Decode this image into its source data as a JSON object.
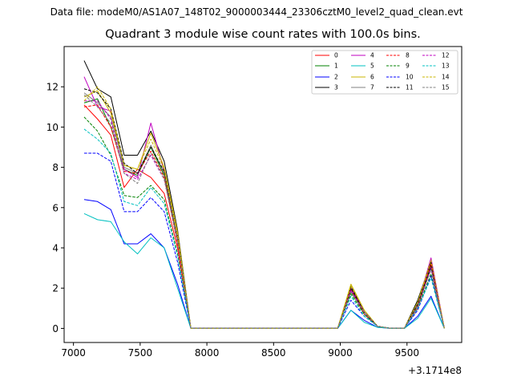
{
  "figure": {
    "suptitle": "Data file: modeM0/AS1A07_148T02_9000003444_23306cztM0_level2_quad_clean.evt"
  },
  "chart_data": {
    "type": "line",
    "title": "Quadrant 3 module wise count rates with 100.0s bins.",
    "xlabel": "",
    "ylabel": "",
    "x_offset_label": "+3.1714e8",
    "xlim": [
      6930,
      9910
    ],
    "ylim": [
      -0.7,
      14.0
    ],
    "xticks": [
      7000,
      7500,
      8000,
      8500,
      9000,
      9500
    ],
    "yticks": [
      0,
      2,
      4,
      6,
      8,
      10,
      12
    ],
    "grid": false,
    "legend": {
      "location": "upper-right",
      "columns": 4
    },
    "x": [
      7080,
      7180,
      7280,
      7380,
      7480,
      7580,
      7680,
      7780,
      7880,
      7980,
      8080,
      8180,
      8280,
      8380,
      8480,
      8580,
      8680,
      8780,
      8880,
      8980,
      9080,
      9180,
      9280,
      9380,
      9480,
      9580,
      9680,
      9780
    ],
    "series": [
      {
        "name": "0",
        "color": "#ff0000",
        "dash": "solid",
        "values": [
          11.1,
          10.4,
          9.6,
          7.0,
          7.9,
          7.5,
          6.7,
          4.0,
          0,
          0,
          0,
          0,
          0,
          0,
          0,
          0,
          0,
          0,
          0,
          0,
          1.9,
          0.7,
          0.1,
          0,
          0,
          1.0,
          3.1,
          0
        ]
      },
      {
        "name": "1",
        "color": "#008000",
        "dash": "solid",
        "values": [
          11.2,
          11.4,
          10.0,
          7.9,
          7.6,
          9.0,
          7.6,
          4.3,
          0,
          0,
          0,
          0,
          0,
          0,
          0,
          0,
          0,
          0,
          0,
          0,
          1.8,
          0.8,
          0.1,
          0,
          0,
          1.1,
          3.0,
          0
        ]
      },
      {
        "name": "2",
        "color": "#0000ff",
        "dash": "solid",
        "values": [
          6.4,
          6.3,
          5.9,
          4.2,
          4.2,
          4.7,
          4.0,
          2.2,
          0,
          0,
          0,
          0,
          0,
          0,
          0,
          0,
          0,
          0,
          0,
          0,
          0.9,
          0.4,
          0.05,
          0,
          0,
          0.6,
          1.6,
          0
        ]
      },
      {
        "name": "3",
        "color": "#000000",
        "dash": "solid",
        "values": [
          13.3,
          11.9,
          11.5,
          8.6,
          8.6,
          9.8,
          8.3,
          4.9,
          0,
          0,
          0,
          0,
          0,
          0,
          0,
          0,
          0,
          0,
          0,
          0,
          2.1,
          0.8,
          0.1,
          0,
          0,
          1.4,
          3.3,
          0
        ]
      },
      {
        "name": "4",
        "color": "#c000c0",
        "dash": "solid",
        "values": [
          12.5,
          11.0,
          10.8,
          7.9,
          7.5,
          10.2,
          7.8,
          4.5,
          0,
          0,
          0,
          0,
          0,
          0,
          0,
          0,
          0,
          0,
          0,
          0,
          2.0,
          0.8,
          0.1,
          0,
          0,
          1.2,
          3.5,
          0
        ]
      },
      {
        "name": "5",
        "color": "#00c0c0",
        "dash": "solid",
        "values": [
          5.7,
          5.4,
          5.3,
          4.3,
          3.7,
          4.5,
          4.0,
          2.0,
          0,
          0,
          0,
          0,
          0,
          0,
          0,
          0,
          0,
          0,
          0,
          0,
          0.9,
          0.3,
          0.05,
          0,
          0,
          0.5,
          1.5,
          0
        ]
      },
      {
        "name": "6",
        "color": "#c8b400",
        "dash": "solid",
        "values": [
          11.5,
          11.8,
          10.7,
          8.1,
          7.9,
          9.7,
          8.0,
          4.8,
          0,
          0,
          0,
          0,
          0,
          0,
          0,
          0,
          0,
          0,
          0,
          0,
          2.2,
          0.9,
          0.1,
          0,
          0,
          1.3,
          3.2,
          0
        ]
      },
      {
        "name": "7",
        "color": "#808080",
        "dash": "solid",
        "values": [
          11.7,
          11.2,
          10.5,
          8.0,
          7.7,
          9.1,
          7.7,
          4.5,
          0,
          0,
          0,
          0,
          0,
          0,
          0,
          0,
          0,
          0,
          0,
          0,
          1.9,
          0.8,
          0.1,
          0,
          0,
          1.2,
          3.1,
          0
        ]
      },
      {
        "name": "8",
        "color": "#ff0000",
        "dash": "dashed",
        "values": [
          11.0,
          11.1,
          10.0,
          7.8,
          7.7,
          8.8,
          7.5,
          4.2,
          0,
          0,
          0,
          0,
          0,
          0,
          0,
          0,
          0,
          0,
          0,
          0,
          1.9,
          0.8,
          0.1,
          0,
          0,
          1.1,
          3.2,
          0
        ]
      },
      {
        "name": "9",
        "color": "#008000",
        "dash": "dashed",
        "values": [
          10.5,
          9.8,
          8.6,
          6.6,
          6.5,
          7.1,
          6.4,
          3.7,
          0,
          0,
          0,
          0,
          0,
          0,
          0,
          0,
          0,
          0,
          0,
          0,
          1.7,
          0.7,
          0.1,
          0,
          0,
          1.0,
          2.7,
          0
        ]
      },
      {
        "name": "10",
        "color": "#0000ff",
        "dash": "dashed",
        "values": [
          8.7,
          8.7,
          8.3,
          5.8,
          5.8,
          6.5,
          5.8,
          3.3,
          0,
          0,
          0,
          0,
          0,
          0,
          0,
          0,
          0,
          0,
          0,
          0,
          1.4,
          0.6,
          0.1,
          0,
          0,
          0.9,
          2.6,
          0
        ]
      },
      {
        "name": "11",
        "color": "#000000",
        "dash": "dashed",
        "values": [
          11.9,
          11.7,
          10.9,
          8.2,
          7.7,
          9.0,
          7.8,
          4.6,
          0,
          0,
          0,
          0,
          0,
          0,
          0,
          0,
          0,
          0,
          0,
          0,
          2.0,
          0.8,
          0.1,
          0,
          0,
          1.2,
          3.1,
          0
        ]
      },
      {
        "name": "12",
        "color": "#c000c0",
        "dash": "dashed",
        "values": [
          11.3,
          11.3,
          10.4,
          7.7,
          7.4,
          8.6,
          7.4,
          4.3,
          0,
          0,
          0,
          0,
          0,
          0,
          0,
          0,
          0,
          0,
          0,
          0,
          1.9,
          0.8,
          0.1,
          0,
          0,
          1.1,
          3.0,
          0
        ]
      },
      {
        "name": "13",
        "color": "#00c0c0",
        "dash": "dashed",
        "values": [
          9.9,
          9.4,
          8.7,
          6.3,
          6.1,
          7.0,
          6.2,
          3.6,
          0,
          0,
          0,
          0,
          0,
          0,
          0,
          0,
          0,
          0,
          0,
          0,
          1.6,
          0.6,
          0.1,
          0,
          0,
          1.0,
          2.5,
          0
        ]
      },
      {
        "name": "14",
        "color": "#c8b400",
        "dash": "dashed",
        "values": [
          11.3,
          12.0,
          10.9,
          8.1,
          7.9,
          9.4,
          7.9,
          4.6,
          0,
          0,
          0,
          0,
          0,
          0,
          0,
          0,
          0,
          0,
          0,
          0,
          2.1,
          0.9,
          0.1,
          0,
          0,
          1.3,
          3.4,
          0
        ]
      },
      {
        "name": "15",
        "color": "#808080",
        "dash": "dashed",
        "values": [
          11.6,
          11.0,
          10.2,
          7.7,
          7.2,
          8.7,
          7.4,
          4.3,
          0,
          0,
          0,
          0,
          0,
          0,
          0,
          0,
          0,
          0,
          0,
          0,
          1.8,
          0.8,
          0.1,
          0,
          0,
          1.1,
          2.9,
          0
        ]
      }
    ]
  }
}
